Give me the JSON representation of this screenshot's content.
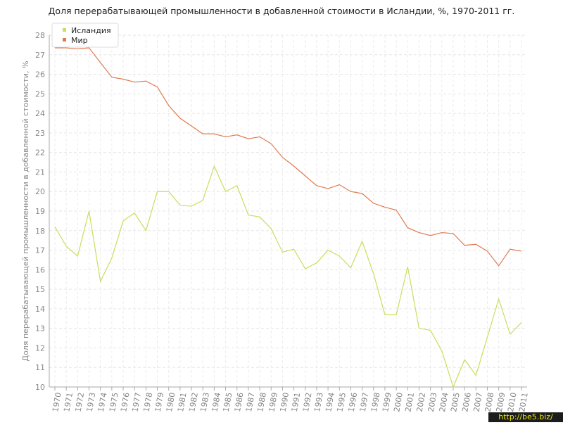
{
  "chart_data": {
    "type": "line",
    "title": "Доля перерабатывающей промышленности в добавленной стоимости в Исландии, %, 1970-2011 гг.",
    "y_label": "Доля перерабатывающей промышленности в добавленной стоимости, %",
    "watermark": "http://be5.biz/",
    "categories": [
      "1970",
      "1971",
      "1972",
      "1973",
      "1974",
      "1975",
      "1976",
      "1977",
      "1978",
      "1979",
      "1980",
      "1981",
      "1982",
      "1983",
      "1984",
      "1985",
      "1986",
      "1987",
      "1988",
      "1989",
      "1990",
      "1991",
      "1992",
      "1993",
      "1994",
      "1995",
      "1996",
      "1997",
      "1998",
      "1999",
      "2000",
      "2001",
      "2002",
      "2003",
      "2004",
      "2005",
      "2006",
      "2007",
      "2008",
      "2009",
      "2010",
      "2011"
    ],
    "series": [
      {
        "name": "Исландия",
        "color": "#c5e05a",
        "values": [
          18.2,
          17.2,
          16.7,
          19.0,
          15.4,
          16.6,
          18.5,
          18.9,
          18.0,
          20.0,
          20.0,
          19.3,
          19.25,
          19.55,
          21.3,
          20.0,
          20.3,
          18.8,
          18.7,
          18.1,
          16.9,
          17.05,
          16.05,
          16.35,
          17.0,
          16.7,
          16.1,
          17.45,
          15.8,
          13.7,
          13.7,
          16.15,
          13.0,
          12.9,
          11.85,
          10.0,
          11.4,
          10.6,
          12.55,
          14.5,
          12.7,
          13.3
        ]
      },
      {
        "name": "Мир",
        "color": "#e07a4f",
        "values": [
          27.35,
          27.35,
          27.3,
          27.35,
          26.6,
          25.85,
          25.75,
          25.6,
          25.65,
          25.35,
          24.4,
          23.75,
          23.35,
          22.95,
          22.95,
          22.8,
          22.9,
          22.7,
          22.8,
          22.45,
          21.75,
          21.3,
          20.8,
          20.3,
          20.15,
          20.35,
          20.0,
          19.9,
          19.4,
          19.2,
          19.05,
          18.15,
          17.9,
          17.75,
          17.9,
          17.85,
          17.25,
          17.3,
          16.95,
          16.2,
          17.05,
          16.95
        ]
      }
    ],
    "ylim": [
      10,
      28
    ],
    "yticks": [
      10,
      11,
      12,
      13,
      14,
      15,
      16,
      17,
      18,
      19,
      20,
      21,
      22,
      23,
      24,
      25,
      26,
      27,
      28
    ],
    "grid": true
  }
}
